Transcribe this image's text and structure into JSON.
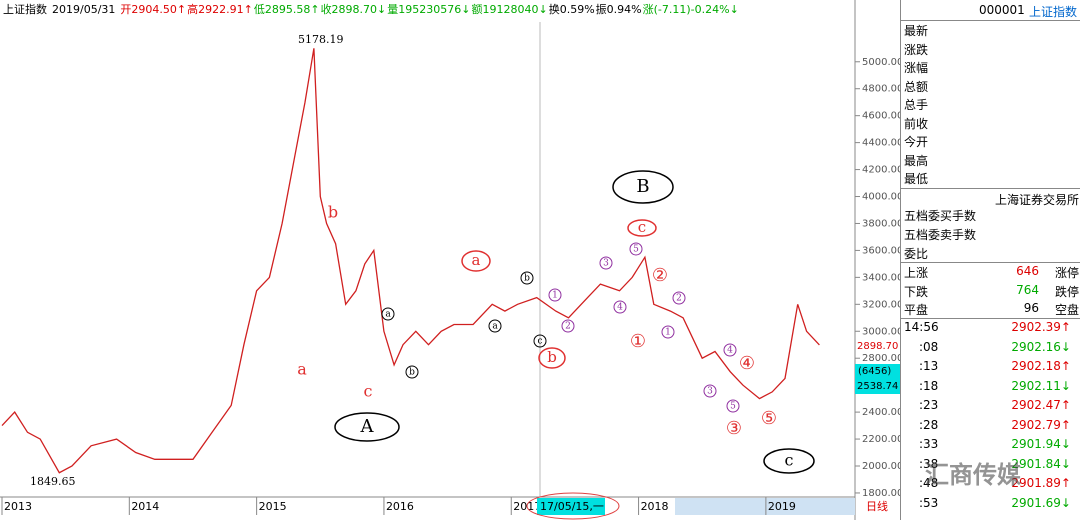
{
  "header": {
    "segments": [
      {
        "text": "上证指数",
        "color": "#000"
      },
      {
        "text": "2019/05/31",
        "color": "#000"
      },
      {
        "text": "开2904.50↑",
        "color": "#d00"
      },
      {
        "text": "高2922.91↑",
        "color": "#d00"
      },
      {
        "text": "低2895.58↑",
        "color": "#0a0"
      },
      {
        "text": "收2898.70↓",
        "color": "#0a0"
      },
      {
        "text": "量195230576↓",
        "color": "#0a0"
      },
      {
        "text": "额19128040↓",
        "color": "#0a0"
      },
      {
        "text": "换0.59%",
        "color": "#000"
      },
      {
        "text": "振0.94%",
        "color": "#000"
      },
      {
        "text": "涨(-7.11)-0.24%↓",
        "color": "#0a0"
      }
    ]
  },
  "chart_data": {
    "type": "line",
    "color": "#d02020",
    "x": [
      2013.0,
      2013.1,
      2013.2,
      2013.3,
      2013.45,
      2013.55,
      2013.7,
      2013.9,
      2014.05,
      2014.2,
      2014.35,
      2014.5,
      2014.65,
      2014.8,
      2014.9,
      2015.0,
      2015.1,
      2015.2,
      2015.3,
      2015.38,
      2015.45,
      2015.5,
      2015.55,
      2015.62,
      2015.7,
      2015.78,
      2015.85,
      2015.92,
      2016.0,
      2016.08,
      2016.15,
      2016.25,
      2016.35,
      2016.45,
      2016.55,
      2016.7,
      2016.85,
      2016.95,
      2017.05,
      2017.2,
      2017.35,
      2017.45,
      2017.6,
      2017.7,
      2017.85,
      2017.95,
      2018.05,
      2018.12,
      2018.25,
      2018.35,
      2018.5,
      2018.6,
      2018.72,
      2018.82,
      2018.95,
      2019.05,
      2019.15,
      2019.25,
      2019.32,
      2019.42
    ],
    "values": [
      2300,
      2400,
      2250,
      2200,
      1950,
      2000,
      2150,
      2200,
      2100,
      2050,
      2050,
      2050,
      2250,
      2450,
      2900,
      3300,
      3400,
      3800,
      4300,
      4700,
      5100,
      4000,
      3800,
      3650,
      3200,
      3300,
      3500,
      3600,
      3000,
      2750,
      2900,
      3000,
      2900,
      3000,
      3050,
      3050,
      3200,
      3150,
      3200,
      3250,
      3150,
      3100,
      3250,
      3350,
      3300,
      3400,
      3550,
      3200,
      3150,
      3100,
      2800,
      2850,
      2700,
      2600,
      2500,
      2550,
      2650,
      3200,
      3000,
      2898.7
    ],
    "ylim": [
      1770,
      5310
    ],
    "yticks": [
      {
        "value": 1800,
        "label": "1800.00"
      },
      {
        "value": 2000,
        "label": "2000.00"
      },
      {
        "value": 2200,
        "label": "2200.00"
      },
      {
        "value": 2400,
        "label": "2400.00"
      },
      {
        "value": 2600,
        "label": "2600.00"
      },
      {
        "value": 2800,
        "label": "2800.00"
      },
      {
        "value": 3000,
        "label": "3000.00"
      },
      {
        "value": 3200,
        "label": "3200.00"
      },
      {
        "value": 3400,
        "label": "3400.00"
      },
      {
        "value": 3600,
        "label": "3600.00"
      },
      {
        "value": 3800,
        "label": "3800.00"
      },
      {
        "value": 4000,
        "label": "4000.00"
      },
      {
        "value": 4200,
        "label": "4200.00"
      },
      {
        "value": 4400,
        "label": "4400.00"
      },
      {
        "value": 4600,
        "label": "4600.00"
      },
      {
        "value": 4800,
        "label": "4800.00"
      },
      {
        "value": 5000,
        "label": "5000.00"
      }
    ],
    "xlim": [
      2013,
      2019.7
    ],
    "xticks": [
      2013,
      2014,
      2015,
      2016,
      2017,
      2018,
      2019
    ],
    "last_label": "2898.70",
    "cursor_labels": [
      "(6456)",
      "2538.74"
    ],
    "cursor_date": "17/05/15,一",
    "period": "日线",
    "annotations": [
      "5178.19",
      "1849.65",
      "b",
      "a",
      "c",
      "A",
      "a",
      "b",
      "B",
      "c",
      "①",
      "②",
      "③",
      "④",
      "⑤",
      "c",
      "a",
      "b",
      "b",
      "a",
      "c",
      "1",
      "2",
      "3",
      "4",
      "5",
      "1",
      "2",
      "3",
      "4",
      "5"
    ]
  },
  "panel": {
    "code": "000001",
    "name": "上证指数",
    "quote_labels": [
      "最新",
      "涨跌",
      "涨幅",
      "总额",
      "总手",
      "前收",
      "今开",
      "最高",
      "最低"
    ],
    "exchange": "上海证券交易所",
    "order_labels": [
      "五档委买手数",
      "五档委卖手数",
      "委比"
    ],
    "breadth": [
      [
        "上涨",
        "646",
        "涨停"
      ],
      [
        "下跌",
        "764",
        "跌停"
      ],
      [
        "平盘",
        "96",
        "空盘"
      ]
    ],
    "ticks": [
      [
        "14:56",
        "2902.39↑"
      ],
      [
        ":08",
        "2902.16↓"
      ],
      [
        ":13",
        "2902.18↑"
      ],
      [
        ":18",
        "2902.11↓"
      ],
      [
        ":23",
        "2902.47↑"
      ],
      [
        ":28",
        "2902.79↑"
      ],
      [
        ":33",
        "2901.94↓"
      ],
      [
        ":38",
        "2901.84↓"
      ],
      [
        ":48",
        "2901.89↑"
      ],
      [
        ":53",
        "2901.69↓"
      ]
    ],
    "watermark": "汇商传媒"
  }
}
